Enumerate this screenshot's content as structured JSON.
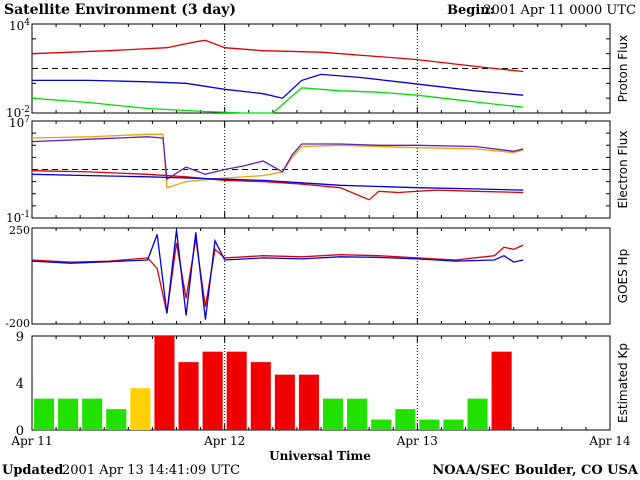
{
  "header": {
    "title": "Satellite Environment (3 day)",
    "begin_label": "Begin:",
    "begin_value": "2001 Apr 11 0000 UTC"
  },
  "footer": {
    "updated_label": "Updated",
    "updated_value": "2001 Apr 13 14:41:09 UTC",
    "credit": "NOAA/SEC Boulder, CO USA"
  },
  "xaxis": {
    "label": "Universal Time",
    "ticks": [
      "Apr 11",
      "Apr 12",
      "Apr 13",
      "Apr 14"
    ],
    "range_days": [
      0,
      3
    ],
    "dotted_at_days": [
      1,
      2
    ]
  },
  "chart_data": [
    {
      "type": "line",
      "ylabel": "Proton Flux",
      "ytick_labels": {
        "top": {
          "base": "10",
          "exp": "4"
        },
        "bottom": {
          "base": "10",
          "exp": "-2"
        }
      },
      "scale": "log",
      "ylim_log10": [
        -2,
        4
      ],
      "threshold_log10": 1,
      "series": [
        {
          "color": "#e00000",
          "x_days": [
            0.0,
            0.4,
            0.7,
            0.85,
            0.9,
            1.0,
            1.2,
            1.5,
            1.8,
            2.0,
            2.2,
            2.4,
            2.55
          ],
          "y_log10": [
            2.0,
            2.2,
            2.4,
            2.8,
            2.9,
            2.4,
            2.2,
            2.1,
            1.8,
            1.6,
            1.3,
            1.0,
            0.8
          ]
        },
        {
          "color": "#0000e0",
          "x_days": [
            0.0,
            0.3,
            0.6,
            0.8,
            1.0,
            1.2,
            1.3,
            1.4,
            1.5,
            1.7,
            1.9,
            2.1,
            2.3,
            2.55
          ],
          "y_log10": [
            0.2,
            0.2,
            0.1,
            0.0,
            -0.4,
            -0.7,
            -1.0,
            0.2,
            0.6,
            0.4,
            0.1,
            -0.2,
            -0.5,
            -0.8
          ]
        },
        {
          "color": "#00e000",
          "x_days": [
            0.0,
            0.3,
            0.6,
            0.9,
            1.1,
            1.25,
            1.4,
            1.6,
            1.8,
            2.0,
            2.2,
            2.4,
            2.55
          ],
          "y_log10": [
            -1.0,
            -1.3,
            -1.7,
            -1.9,
            -2.0,
            -2.0,
            -0.3,
            -0.5,
            -0.6,
            -0.8,
            -1.1,
            -1.4,
            -1.6
          ]
        }
      ]
    },
    {
      "type": "line",
      "ylabel": "Electron Flux",
      "ytick_labels": {
        "top": {
          "base": "10",
          "exp": "7"
        },
        "bottom": {
          "base": "10",
          "exp": "-1"
        }
      },
      "scale": "log",
      "ylim_log10": [
        -1,
        7
      ],
      "threshold_log10": 3,
      "series": [
        {
          "color": "#f0a000",
          "x_days": [
            0.0,
            0.3,
            0.6,
            0.68,
            0.7,
            0.8,
            1.0,
            1.2,
            1.3,
            1.35,
            1.4,
            1.6,
            1.8,
            2.0,
            2.3,
            2.5,
            2.55
          ],
          "y_log10": [
            5.6,
            5.7,
            5.9,
            5.9,
            1.5,
            2.0,
            2.3,
            2.5,
            2.8,
            4.0,
            4.9,
            5.0,
            4.9,
            4.8,
            4.7,
            4.4,
            4.6
          ]
        },
        {
          "color": "#6020c0",
          "x_days": [
            0.0,
            0.3,
            0.6,
            0.68,
            0.7,
            0.8,
            0.9,
            1.0,
            1.1,
            1.2,
            1.3,
            1.35,
            1.4,
            1.6,
            1.8,
            2.0,
            2.3,
            2.5,
            2.55
          ],
          "y_log10": [
            5.3,
            5.5,
            5.7,
            5.6,
            2.2,
            3.2,
            2.6,
            3.0,
            3.3,
            3.7,
            2.8,
            4.2,
            5.1,
            5.1,
            5.0,
            5.0,
            4.9,
            4.5,
            4.7
          ]
        },
        {
          "color": "#e00000",
          "x_days": [
            0.0,
            0.3,
            0.6,
            0.8,
            1.0,
            1.2,
            1.4,
            1.6,
            1.75,
            1.8,
            1.9,
            2.1,
            2.3,
            2.55
          ],
          "y_log10": [
            2.9,
            2.8,
            2.6,
            2.4,
            2.1,
            2.0,
            1.8,
            1.5,
            0.5,
            1.2,
            1.1,
            1.3,
            1.2,
            1.1
          ]
        },
        {
          "color": "#0000e0",
          "x_days": [
            0.0,
            0.3,
            0.6,
            0.8,
            1.0,
            1.2,
            1.4,
            1.6,
            1.8,
            2.0,
            2.3,
            2.55
          ],
          "y_log10": [
            2.6,
            2.5,
            2.4,
            2.3,
            2.2,
            2.1,
            1.9,
            1.7,
            1.6,
            1.5,
            1.4,
            1.3
          ]
        }
      ]
    },
    {
      "type": "line",
      "ylabel": "GOES Hp",
      "ytick_labels": {
        "top": "250",
        "bottom": "-200"
      },
      "scale": "linear",
      "ylim": [
        -200,
        250
      ],
      "series": [
        {
          "color": "#e00000",
          "x_days": [
            0.0,
            0.2,
            0.4,
            0.6,
            0.65,
            0.7,
            0.75,
            0.8,
            0.85,
            0.9,
            0.95,
            1.0,
            1.2,
            1.4,
            1.6,
            1.8,
            2.0,
            2.2,
            2.4,
            2.45,
            2.5,
            2.55
          ],
          "y": [
            100,
            90,
            95,
            110,
            60,
            -150,
            180,
            -80,
            200,
            -120,
            150,
            110,
            120,
            115,
            125,
            120,
            110,
            100,
            120,
            160,
            150,
            170
          ]
        },
        {
          "color": "#0000e0",
          "x_days": [
            0.0,
            0.2,
            0.4,
            0.6,
            0.65,
            0.7,
            0.75,
            0.8,
            0.85,
            0.9,
            0.95,
            1.0,
            1.2,
            1.4,
            1.6,
            1.8,
            2.0,
            2.2,
            2.4,
            2.45,
            2.5,
            2.55
          ],
          "y": [
            95,
            85,
            92,
            100,
            220,
            -150,
            240,
            -160,
            230,
            -180,
            190,
            100,
            110,
            105,
            115,
            112,
            105,
            95,
            100,
            120,
            90,
            100
          ]
        }
      ]
    },
    {
      "type": "bar",
      "ylabel": "Estimated Kp",
      "ytick_labels": [
        "9",
        "4",
        "0"
      ],
      "ylim": [
        0,
        9
      ],
      "bar_width_hours": 3,
      "colors": {
        "quiet": "#22e000",
        "unsettled": "#ffd000",
        "storm": "#f00000"
      },
      "values": [
        3,
        3,
        3,
        2,
        4,
        9,
        6.5,
        7.5,
        7.5,
        6.5,
        5.3,
        5.3,
        3,
        3,
        1,
        2,
        1,
        1,
        3,
        7.5
      ],
      "levels": [
        "quiet",
        "quiet",
        "quiet",
        "quiet",
        "unsettled",
        "storm",
        "storm",
        "storm",
        "storm",
        "storm",
        "storm",
        "storm",
        "quiet",
        "quiet",
        "quiet",
        "quiet",
        "quiet",
        "quiet",
        "quiet",
        "storm"
      ]
    }
  ]
}
